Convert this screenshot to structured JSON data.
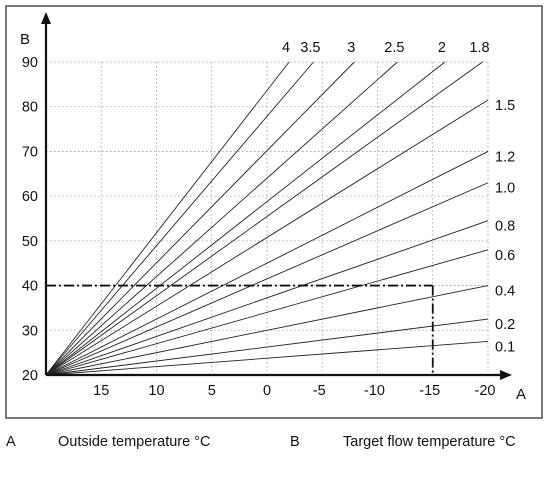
{
  "chart_data": {
    "type": "line",
    "xlabel": "A",
    "ylabel": "B",
    "x_ticks": [
      15,
      10,
      5,
      0,
      -5,
      -10,
      -15,
      -20
    ],
    "x_tick_labels": [
      "15",
      "10",
      "5",
      "0",
      "-5",
      "-10",
      "-15",
      "-20"
    ],
    "y_ticks": [
      20,
      30,
      40,
      50,
      60,
      70,
      80,
      90
    ],
    "y_tick_labels": [
      "20",
      "30",
      "40",
      "50",
      "60",
      "70",
      "80",
      "90"
    ],
    "xlim": [
      20,
      -20
    ],
    "ylim": [
      20,
      90
    ],
    "x_reversed": true,
    "grid": "dotted",
    "curve_origin": {
      "x": 20,
      "y": 20
    },
    "series": [
      {
        "name": "4",
        "x_end": -2,
        "y_end": 90
      },
      {
        "name": "3.5",
        "x_end": -4.2,
        "y_end": 90
      },
      {
        "name": "3",
        "x_end": -7.9,
        "y_end": 90
      },
      {
        "name": "2.5",
        "x_end": -11.8,
        "y_end": 90
      },
      {
        "name": "2",
        "x_end": -16.1,
        "y_end": 90
      },
      {
        "name": "1.8",
        "x_end": -19.5,
        "y_end": 90
      },
      {
        "name": "1.5",
        "x_end": -20,
        "y_end": 81.5
      },
      {
        "name": "1.2",
        "x_end": -20,
        "y_end": 70
      },
      {
        "name": "1.0",
        "x_end": -20,
        "y_end": 63
      },
      {
        "name": "0.8",
        "x_end": -20,
        "y_end": 54.5
      },
      {
        "name": "0.6",
        "x_end": -20,
        "y_end": 48
      },
      {
        "name": "0.4",
        "x_end": -20,
        "y_end": 40
      },
      {
        "name": "0.2",
        "x_end": -20,
        "y_end": 32.5
      },
      {
        "name": "0.1",
        "x_end": -20,
        "y_end": 27.5
      }
    ],
    "annotation": {
      "style": "dash-dot",
      "x": -15,
      "y": 40
    }
  },
  "captions": {
    "a_letter": "A",
    "a_text": "Outside temperature °C",
    "b_letter": "B",
    "b_text": "Target flow temperature °C"
  }
}
